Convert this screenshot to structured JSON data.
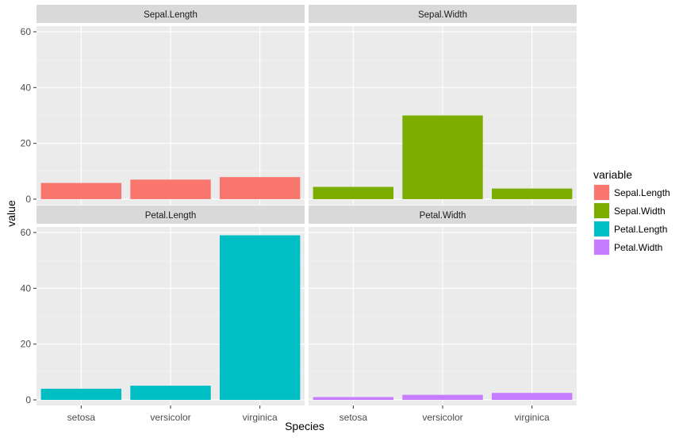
{
  "chart_data": {
    "type": "bar",
    "facets": [
      "Sepal.Length",
      "Sepal.Width",
      "Petal.Length",
      "Petal.Width"
    ],
    "categories": [
      "setosa",
      "versicolor",
      "virginica"
    ],
    "series": [
      {
        "name": "Sepal.Length",
        "color": "#F8766D",
        "values": [
          5.8,
          7.0,
          7.9
        ]
      },
      {
        "name": "Sepal.Width",
        "color": "#7CAE00",
        "values": [
          4.4,
          30.0,
          3.8
        ]
      },
      {
        "name": "Petal.Length",
        "color": "#00BFC4",
        "values": [
          4.0,
          5.1,
          59.0
        ]
      },
      {
        "name": "Petal.Width",
        "color": "#C77CFF",
        "values": [
          1.0,
          1.8,
          2.5
        ]
      }
    ],
    "ylim": [
      -2,
      62
    ],
    "yticks": [
      0,
      20,
      40,
      60
    ],
    "xlabel": "Species",
    "ylabel": "value",
    "legend_title": "variable",
    "legend_position": "right",
    "grid": true,
    "panel_background": "#EBEBEB",
    "strip_background": "#D9D9D9"
  }
}
